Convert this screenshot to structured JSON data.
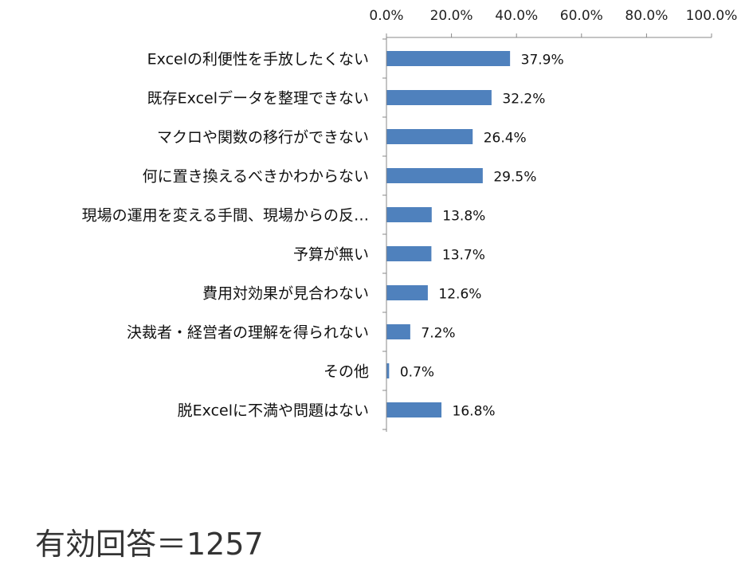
{
  "chart_data": {
    "type": "bar",
    "orientation": "horizontal",
    "categories": [
      "Excelの利便性を手放したくない",
      "既存Excelデータを整理できない",
      "マクロや関数の移行ができない",
      "何に置き換えるべきかわからない",
      "現場の運用を変える手間、現場からの反…",
      "予算が無い",
      "費用対効果が見合わない",
      "決裁者・経営者の理解を得られない",
      "その他",
      "脱Excelに不満や問題はない"
    ],
    "values": [
      37.9,
      32.2,
      26.4,
      29.5,
      13.8,
      13.7,
      12.6,
      7.2,
      0.7,
      16.8
    ],
    "data_labels": [
      "37.9%",
      "32.2%",
      "26.4%",
      "29.5%",
      "13.8%",
      "13.7%",
      "12.6%",
      "7.2%",
      "0.7%",
      "16.8%"
    ],
    "xlim": [
      0,
      100
    ],
    "x_ticks": [
      "0.0%",
      "20.0%",
      "40.0%",
      "60.0%",
      "80.0%",
      "100.0%"
    ],
    "x_axis_position": "top",
    "grid": false,
    "colors": {
      "bar": "#4f81bd",
      "axis": "#888888"
    }
  },
  "footnote": "有効回答＝1257"
}
